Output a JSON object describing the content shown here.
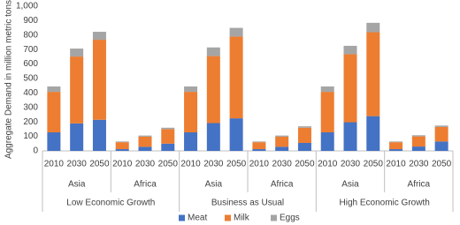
{
  "chart_data": {
    "type": "stacked_bar",
    "y_label": "Aggregate Demand in million metric tons",
    "categories": [
      "2010",
      "2030",
      "2050",
      "2010",
      "2030",
      "2050",
      "2010",
      "2030",
      "2050",
      "2010",
      "2030",
      "2050",
      "2010",
      "2030",
      "2050",
      "2010",
      "2030",
      "2050"
    ],
    "regions": [
      "Asia",
      "Africa",
      "Asia",
      "Africa",
      "Asia",
      "Africa"
    ],
    "scenarios": [
      "Low Economic Growth",
      "Business as Usual",
      "High Economic Growth"
    ],
    "series": [
      {
        "name": "Meat",
        "color": "#4472c4",
        "values": [
          128,
          190,
          215,
          12,
          28,
          50,
          128,
          192,
          225,
          12,
          28,
          55,
          128,
          198,
          240,
          12,
          30,
          65
        ]
      },
      {
        "name": "Milk",
        "color": "#ed7d31",
        "values": [
          280,
          462,
          553,
          48,
          70,
          100,
          280,
          463,
          565,
          48,
          70,
          105,
          280,
          470,
          580,
          48,
          70,
          100
        ]
      },
      {
        "name": "Eggs",
        "color": "#a5a5a5",
        "values": [
          37,
          55,
          55,
          5,
          8,
          10,
          37,
          60,
          60,
          5,
          8,
          10,
          37,
          58,
          65,
          5,
          8,
          10
        ]
      }
    ],
    "ylim": [
      0,
      1000
    ],
    "yticks": [
      0,
      100,
      200,
      300,
      400,
      500,
      600,
      700,
      800,
      900,
      {
        "value": 1000,
        "label": "1,000"
      }
    ],
    "grid": false,
    "legend": "bottom"
  }
}
